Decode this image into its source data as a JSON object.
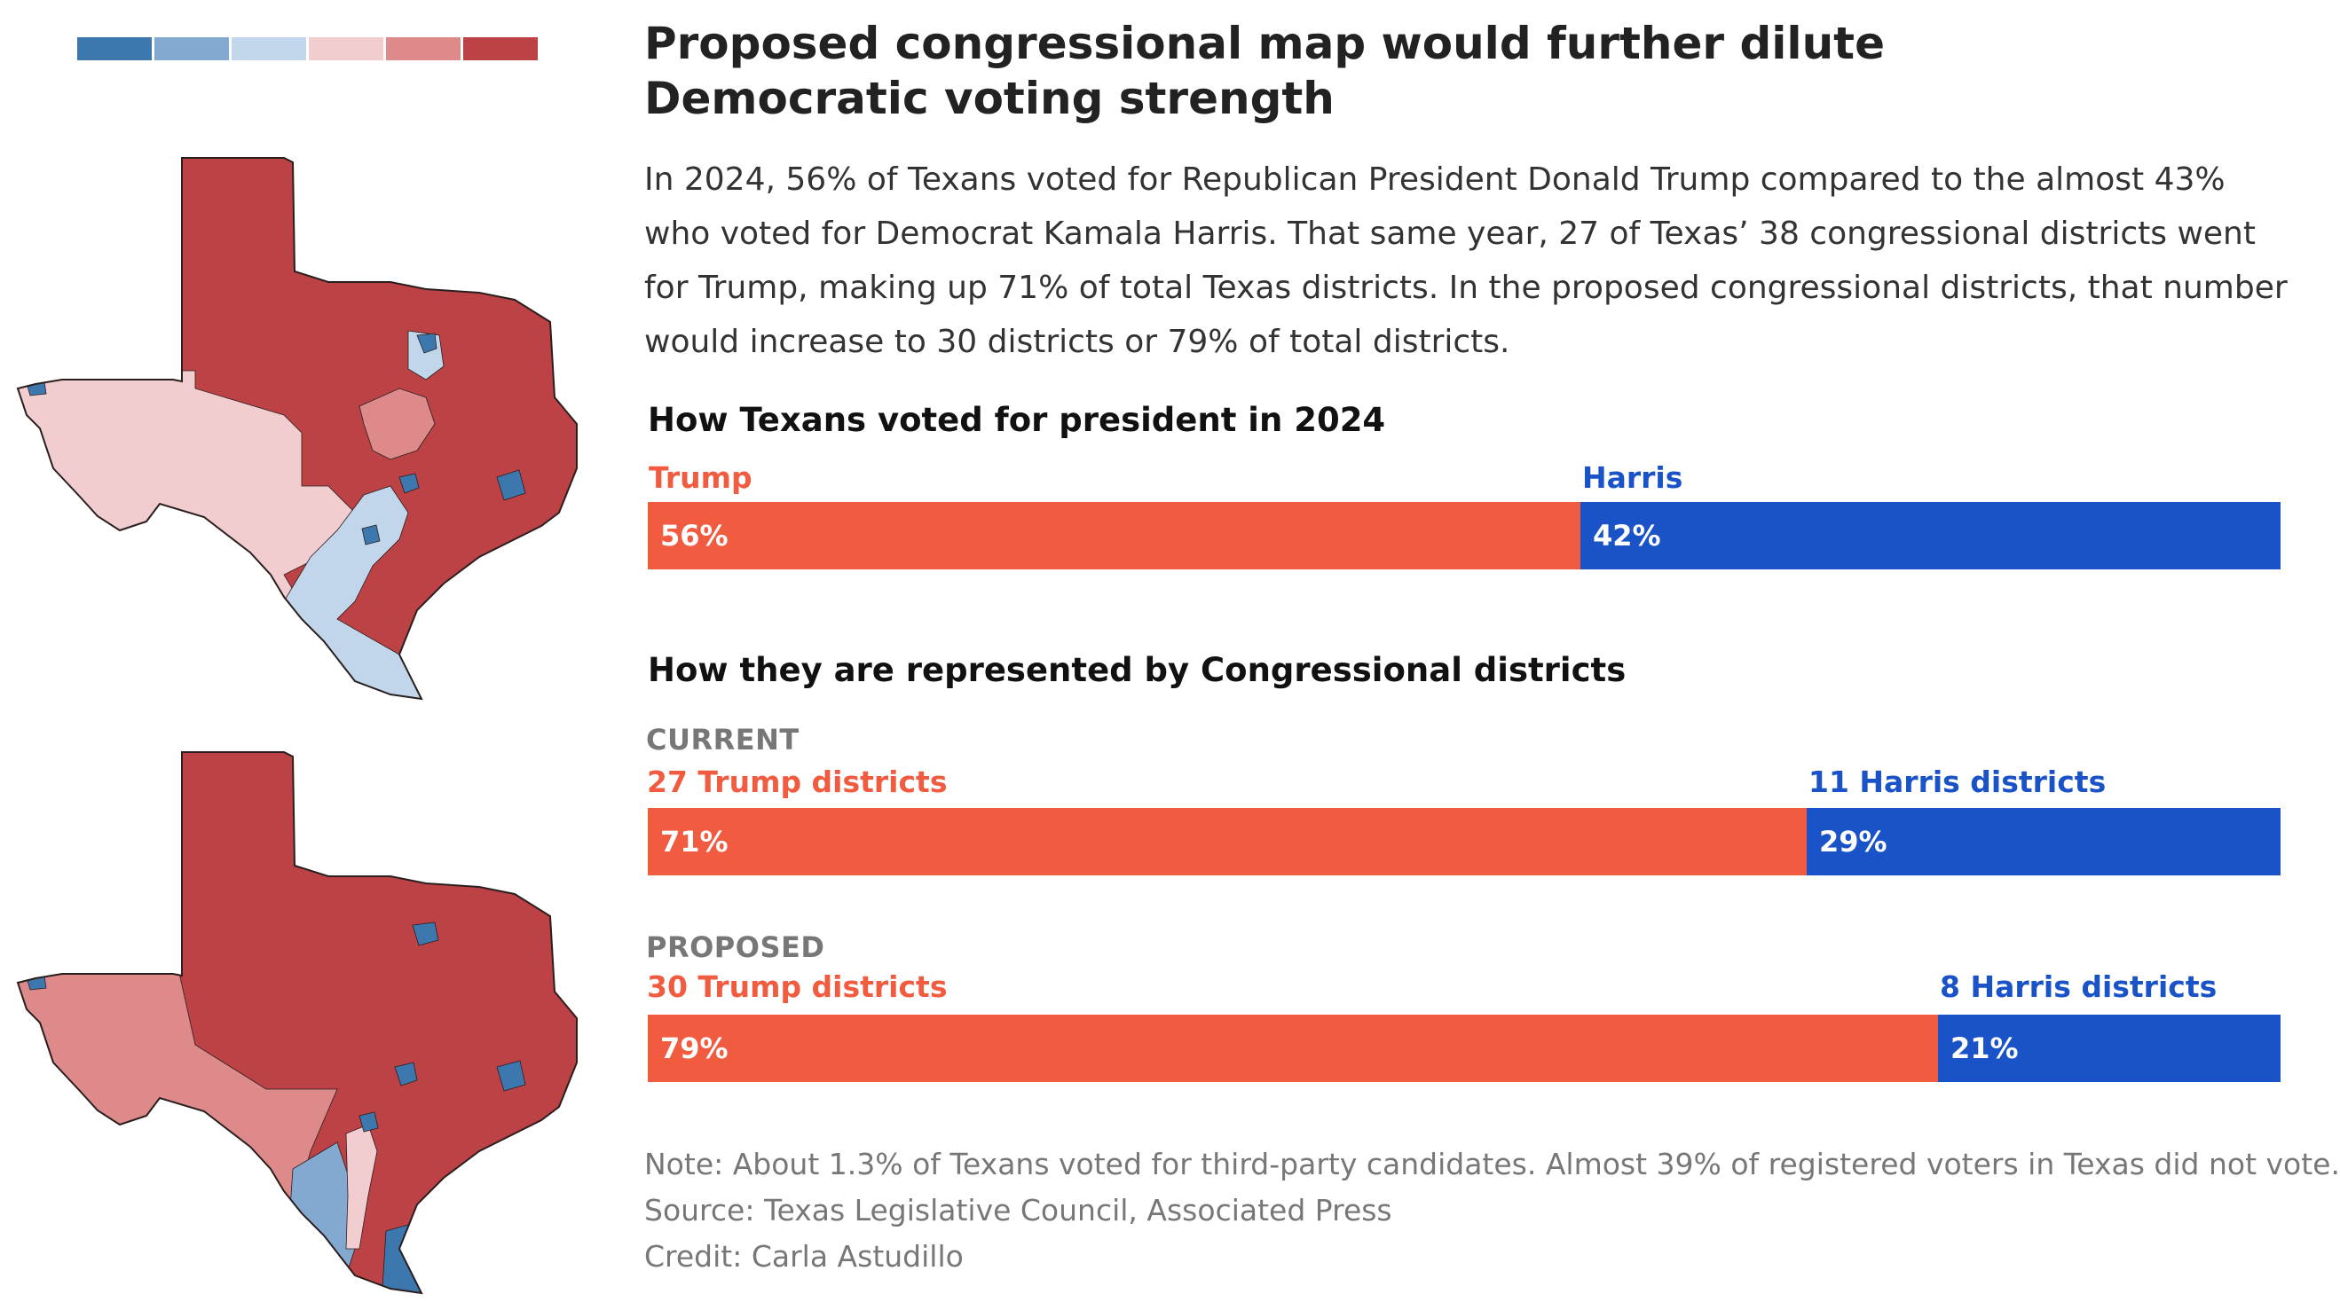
{
  "colors": {
    "trump": "#F15B40",
    "harris": "#1A52C7",
    "legend_scale": [
      "#3C78AE",
      "#84A9D0",
      "#C1D6EA",
      "#F2CDCF",
      "#DE8A8A",
      "#BC4246"
    ],
    "outline": "#2a1e1e"
  },
  "header": {
    "title": "Proposed congressional map would further dilute Democratic voting strength",
    "lede": "In 2024, 56% of Texans voted for Republican President Donald Trump compared to the almost 43% who voted for Democrat Kamala Harris. That same year, 27 of Texas’ 38 congressional districts went for Trump, making up 71% of total Texas districts. In the proposed congressional districts, that number would increase to 30 districts or 79% of total districts."
  },
  "chart_data": [
    {
      "type": "bar",
      "orientation": "horizontal-stacked",
      "title": "How Texans voted for president in 2024",
      "categories": [
        "Trump",
        "Harris"
      ],
      "values": [
        56,
        42
      ],
      "value_labels": [
        "56%",
        "42%"
      ]
    },
    {
      "type": "bar",
      "orientation": "horizontal-stacked",
      "title": "How they are represented by Congressional districts",
      "group": "CURRENT",
      "categories": [
        "27 Trump districts",
        "11 Harris districts"
      ],
      "values": [
        71,
        29
      ],
      "value_labels": [
        "71%",
        "29%"
      ]
    },
    {
      "type": "bar",
      "orientation": "horizontal-stacked",
      "group": "PROPOSED",
      "categories": [
        "30 Trump districts",
        "8 Harris districts"
      ],
      "values": [
        79,
        21
      ],
      "value_labels": [
        "79%",
        "21%"
      ]
    }
  ],
  "footer": {
    "note": "Note: About 1.3% of Texans voted for third-party candidates. Almost 39% of registered voters in Texas did not vote.",
    "source": "Source: Texas Legislative Council, Associated Press",
    "credit": "Credit: Carla Astudillo"
  }
}
